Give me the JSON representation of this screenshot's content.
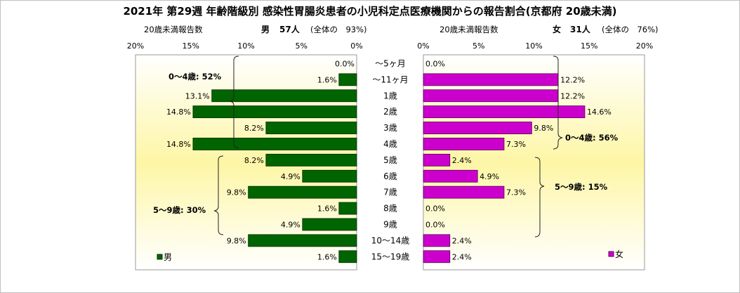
{
  "title": "2021年 第29週 年齢階級別 感染性胃腸炎患者の小児科定点医療機関からの報告割合(京都府 20歳未満)",
  "male_header": {
    "caption": "20歳未満報告数",
    "sex": "男",
    "count": "57人",
    "share": "(全体の　93%)"
  },
  "female_header": {
    "caption": "20歳未満報告数",
    "sex": "女",
    "count": "31人",
    "share": "(全体の　76%)"
  },
  "groups": {
    "male_0_4": "0～4歳: 52%",
    "male_5_9": "5～9歳: 30%",
    "female_0_4": "0～4歳: 56%",
    "female_5_9": "5～9歳: 15%"
  },
  "legend": {
    "male": "男",
    "female": "女"
  },
  "chart_data": {
    "type": "bar",
    "orientation": "horizontal",
    "categories": [
      "～5ヶ月",
      "～11ヶ月",
      "1歳",
      "2歳",
      "3歳",
      "4歳",
      "5歳",
      "6歳",
      "7歳",
      "8歳",
      "9歳",
      "10～14歳",
      "15～19歳"
    ],
    "series": [
      {
        "name": "男",
        "color": "#006400",
        "values": [
          0.0,
          1.6,
          13.1,
          14.8,
          8.2,
          14.8,
          8.2,
          4.9,
          9.8,
          1.6,
          4.9,
          9.8,
          1.6
        ],
        "labels": [
          "0.0%",
          "1.6%",
          "13.1%",
          "14.8%",
          "8.2%",
          "14.8%",
          "8.2%",
          "4.9%",
          "9.8%",
          "1.6%",
          "4.9%",
          "9.8%",
          "1.6%"
        ]
      },
      {
        "name": "女",
        "color": "#cc00cc",
        "values": [
          0.0,
          12.2,
          12.2,
          14.6,
          9.8,
          7.3,
          2.4,
          4.9,
          7.3,
          0.0,
          0.0,
          2.4,
          2.4
        ],
        "labels": [
          "0.0%",
          "12.2%",
          "12.2%",
          "14.6%",
          "9.8%",
          "7.3%",
          "2.4%",
          "4.9%",
          "7.3%",
          "0.0%",
          "0.0%",
          "2.4%",
          "2.4%"
        ]
      }
    ],
    "male_axis_ticks": [
      "20%",
      "15%",
      "10%",
      "5%",
      "0%"
    ],
    "female_axis_ticks": [
      "0%",
      "5%",
      "10%",
      "15%",
      "20%"
    ],
    "xlim": [
      0,
      20
    ],
    "x_unit": "%"
  }
}
